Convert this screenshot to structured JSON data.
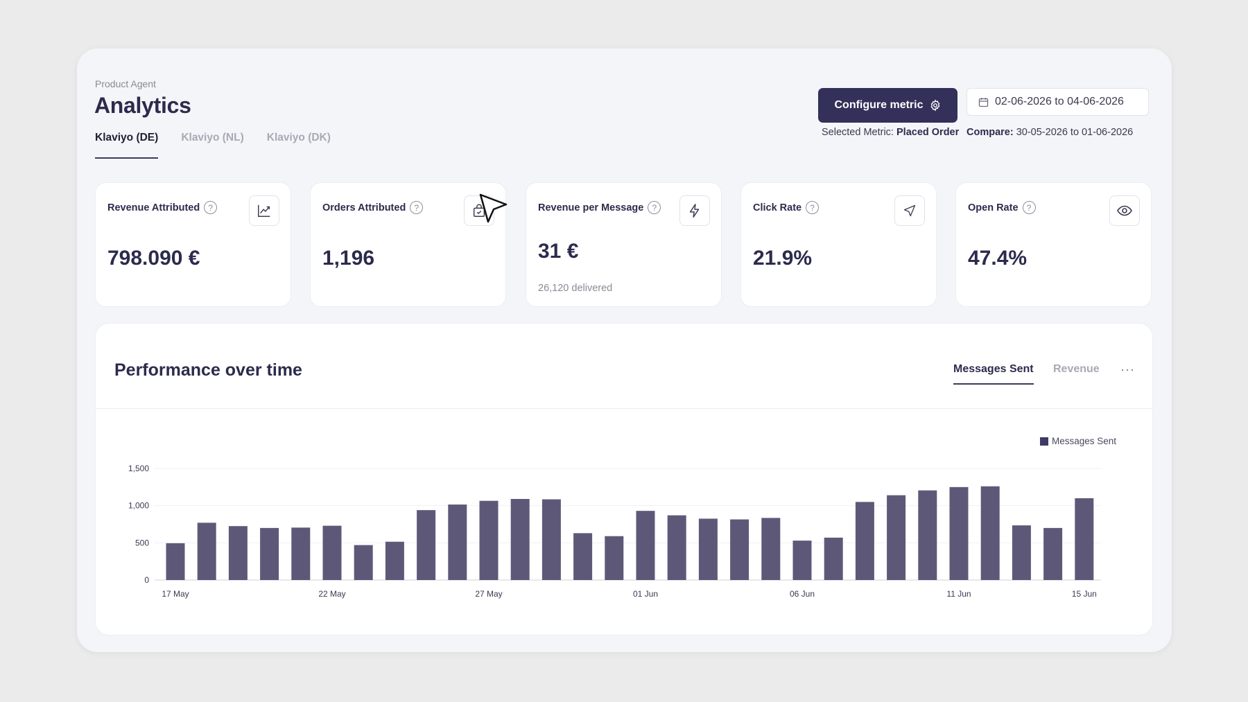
{
  "header": {
    "breadcrumb": "Product Agent",
    "title": "Analytics",
    "tabs": [
      {
        "label": "Klaviyo (DE)",
        "active": true
      },
      {
        "label": "Klaviyo (NL)",
        "active": false
      },
      {
        "label": "Klaviyo (DK)",
        "active": false
      }
    ],
    "configure_label": "Configure metric",
    "date_range": "02-06-2026 to 04-06-2026",
    "selected_metric_label": "Selected Metric:",
    "selected_metric_value": "Placed Order",
    "compare_label": "Compare:",
    "compare_value": "30-05-2026 to 01-06-2026"
  },
  "cards": [
    {
      "title": "Revenue Attributed",
      "value": "798.090 €",
      "icon": "trending-up-icon"
    },
    {
      "title": "Orders Attributed",
      "value": "1,196",
      "icon": "shopping-bag-check-icon"
    },
    {
      "title": "Revenue per Message",
      "value": "31 €",
      "sub": "26,120 delivered",
      "icon": "lightning-icon"
    },
    {
      "title": "Click Rate",
      "value": "21.9%",
      "icon": "navigation-arrow-icon"
    },
    {
      "title": "Open Rate",
      "value": "47.4%",
      "icon": "eye-icon"
    }
  ],
  "help_glyph": "?",
  "performance": {
    "title": "Performance over time",
    "tabs": [
      {
        "label": "Messages Sent",
        "active": true
      },
      {
        "label": "Revenue",
        "active": false
      }
    ],
    "more_label": "···"
  },
  "chart_data": {
    "type": "bar",
    "legend": "Messages Sent",
    "legend_position": "top-right",
    "grid": true,
    "color": "#5e5878",
    "ylim": [
      0,
      1500
    ],
    "yticks": [
      0,
      500,
      1000,
      1500
    ],
    "ytick_labels": [
      "0",
      "500",
      "1,000",
      "1,500"
    ],
    "xtick_labels": [
      "17 May",
      "22 May",
      "27 May",
      "01 Jun",
      "06 Jun",
      "11 Jun",
      "15 Jun"
    ],
    "xtick_indices": [
      0,
      5,
      10,
      15,
      20,
      25,
      29
    ],
    "categories": [
      "17 May",
      "18 May",
      "19 May",
      "20 May",
      "21 May",
      "22 May",
      "23 May",
      "24 May",
      "25 May",
      "26 May",
      "27 May",
      "28 May",
      "29 May",
      "30 May",
      "31 May",
      "01 Jun",
      "02 Jun",
      "03 Jun",
      "04 Jun",
      "05 Jun",
      "06 Jun",
      "07 Jun",
      "08 Jun",
      "09 Jun",
      "10 Jun",
      "11 Jun",
      "12 Jun",
      "13 Jun",
      "14 Jun",
      "15 Jun"
    ],
    "series": [
      {
        "name": "Messages Sent",
        "values": [
          495,
          770,
          725,
          700,
          705,
          730,
          470,
          515,
          940,
          1015,
          1065,
          1090,
          1085,
          630,
          590,
          930,
          870,
          825,
          815,
          835,
          530,
          570,
          1050,
          1140,
          1205,
          1250,
          1260,
          735,
          700,
          1100
        ]
      }
    ]
  }
}
